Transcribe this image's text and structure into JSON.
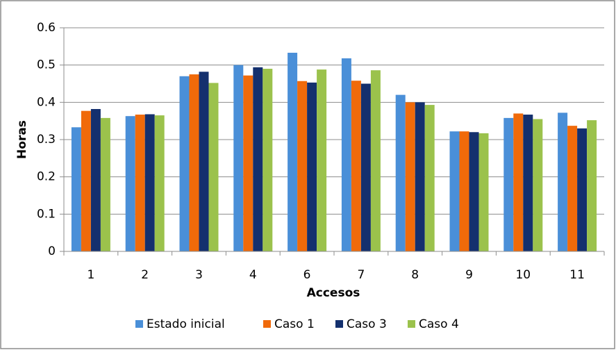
{
  "chart_data": {
    "type": "bar",
    "y_label": "Horas",
    "x_label": "Accesos",
    "categories": [
      "1",
      "2",
      "3",
      "4",
      "6",
      "7",
      "8",
      "9",
      "10",
      "11"
    ],
    "series": [
      {
        "name": "Estado inicial",
        "color": "#4a8fd8",
        "values": [
          0.333,
          0.363,
          0.47,
          0.5,
          0.533,
          0.518,
          0.42,
          0.322,
          0.358,
          0.372
        ]
      },
      {
        "name": "Caso 1",
        "color": "#f06a0a",
        "values": [
          0.377,
          0.367,
          0.475,
          0.472,
          0.457,
          0.458,
          0.4,
          0.322,
          0.37,
          0.337
        ]
      },
      {
        "name": "Caso 3",
        "color": "#14306e",
        "values": [
          0.382,
          0.368,
          0.482,
          0.494,
          0.453,
          0.45,
          0.4,
          0.32,
          0.367,
          0.33
        ]
      },
      {
        "name": "Caso 4",
        "color": "#9bc24c",
        "values": [
          0.358,
          0.365,
          0.452,
          0.49,
          0.488,
          0.486,
          0.393,
          0.317,
          0.355,
          0.352
        ]
      }
    ],
    "ylim": [
      0,
      0.6
    ],
    "yticks": [
      0,
      0.1,
      0.2,
      0.3,
      0.4,
      0.5,
      0.6
    ],
    "grid": true,
    "legend": "bottom"
  }
}
